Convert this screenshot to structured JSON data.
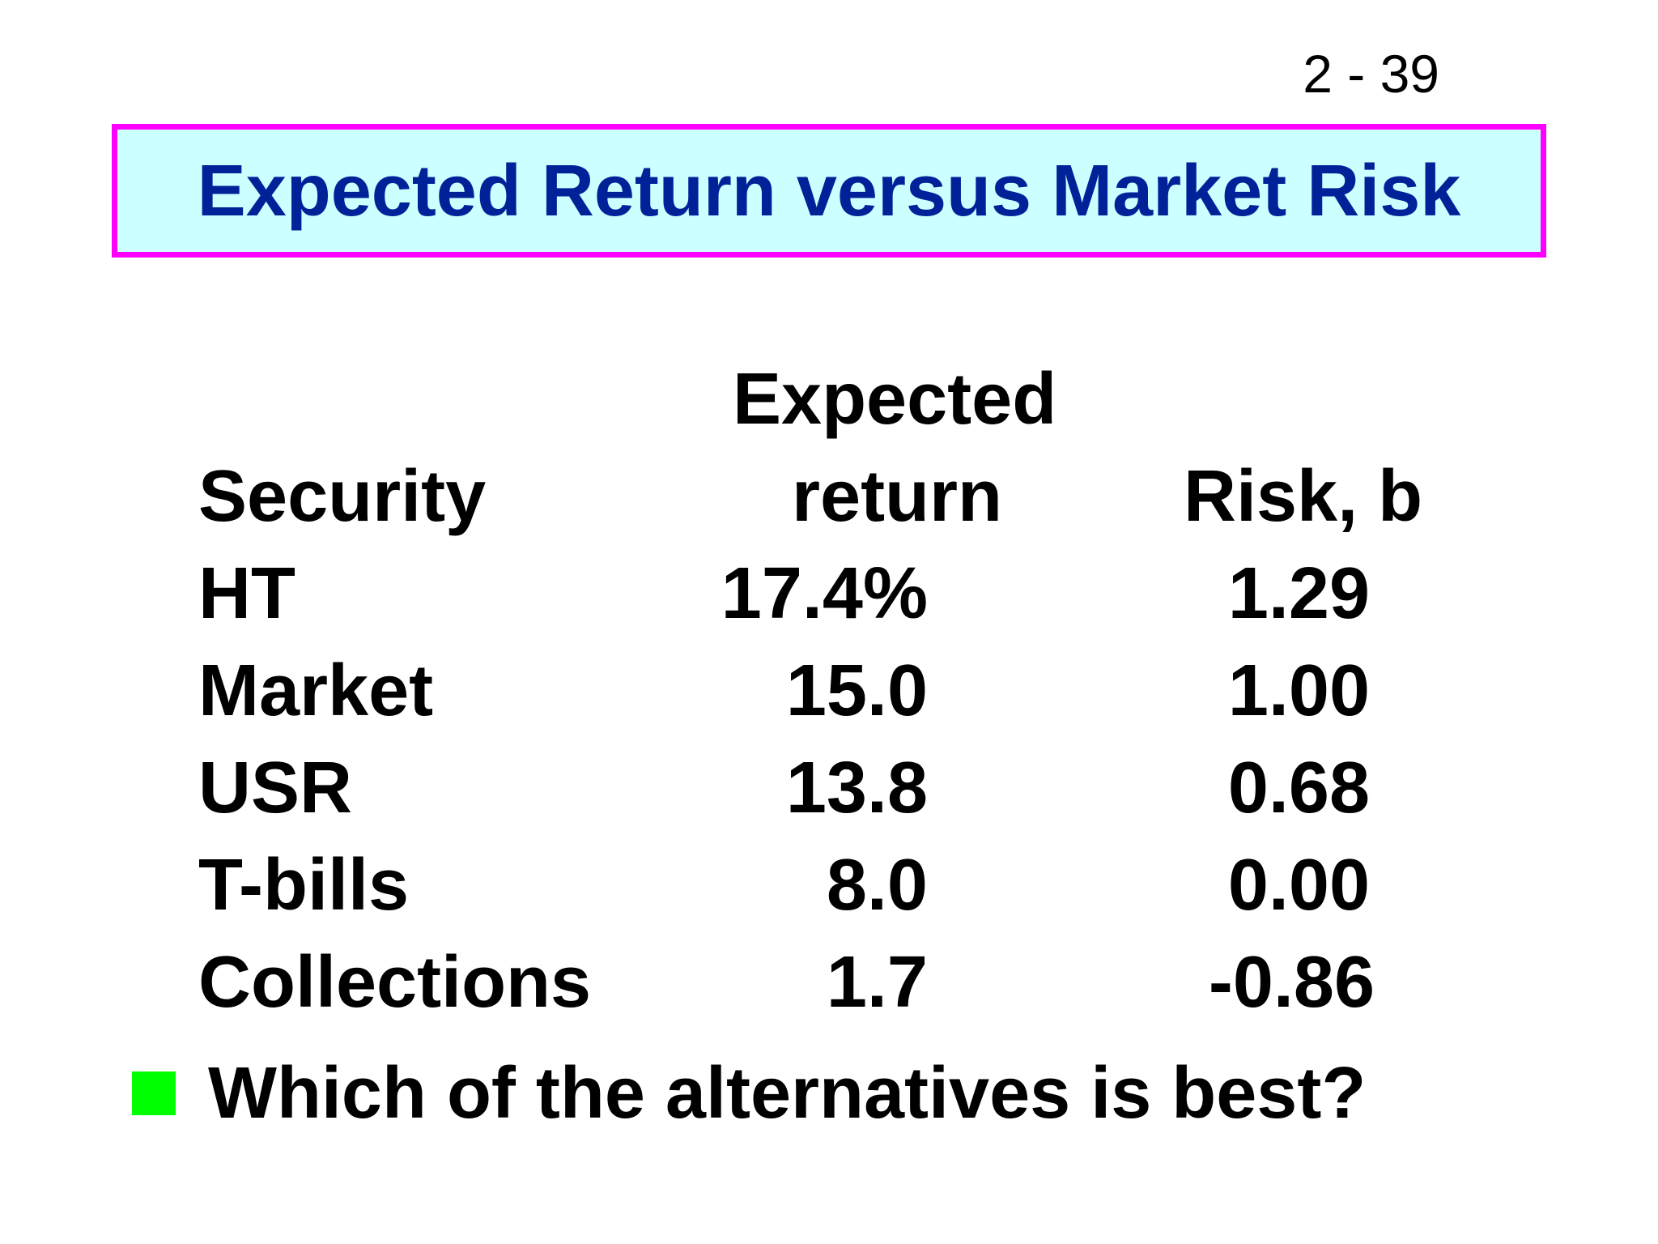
{
  "slide_number": "2 - 39",
  "title": "Expected Return versus Market Risk",
  "table": {
    "header": {
      "security": "Security",
      "expected_return_line1": "Expected",
      "expected_return_line2": "return",
      "risk": "Risk, b"
    },
    "rows": [
      {
        "security": "HT",
        "expected_return": "17.4%",
        "risk": "1.29"
      },
      {
        "security": "Market",
        "expected_return": "15.0",
        "risk": "1.00"
      },
      {
        "security": "USR",
        "expected_return": "13.8",
        "risk": "0.68"
      },
      {
        "security": "T-bills",
        "expected_return": "8.0",
        "risk": "0.00"
      },
      {
        "security": "Collections",
        "expected_return": "1.7",
        "risk": "-0.86"
      }
    ]
  },
  "bullet": {
    "text": "Which of the alternatives is best?",
    "color": "#00ff00"
  },
  "colors": {
    "title_text": "#002299",
    "title_background": "#ccffff",
    "title_border": "#ff00ff"
  }
}
